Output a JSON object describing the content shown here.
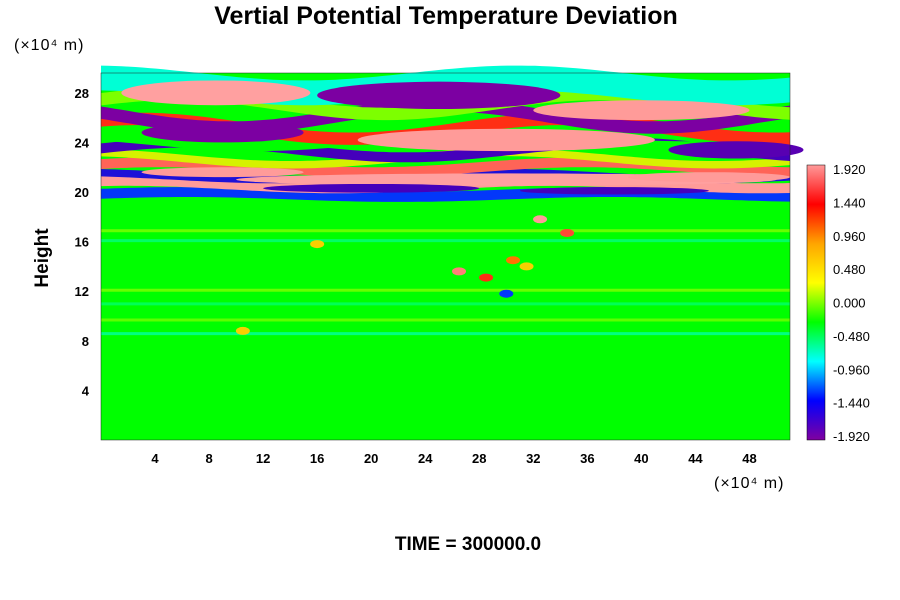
{
  "chart_data": {
    "type": "heatmap",
    "title": "Vertial Potential Temperature Deviation",
    "ylabel": "Height",
    "x_unit": "(×10⁴ m)",
    "y_unit": "(×10⁴ m)",
    "x_ticks": [
      4,
      8,
      12,
      16,
      20,
      24,
      28,
      32,
      36,
      40,
      44,
      48
    ],
    "y_ticks": [
      4,
      8,
      12,
      16,
      20,
      24,
      28
    ],
    "xlim": [
      0,
      51
    ],
    "ylim": [
      0,
      29.6
    ],
    "colorbar": {
      "labels": [
        "1.920",
        "1.440",
        "0.960",
        "0.480",
        "0.000",
        "-0.480",
        "-0.960",
        "-1.440",
        "-1.920"
      ],
      "range": [
        -1.92,
        1.92
      ],
      "palette": [
        "#ff9a9a",
        "#ff0000",
        "#ffa500",
        "#ffff00",
        "#00ff00",
        "#00ffff",
        "#0000ff",
        "#8000a0"
      ]
    },
    "footer": "TIME = 300000.0"
  }
}
